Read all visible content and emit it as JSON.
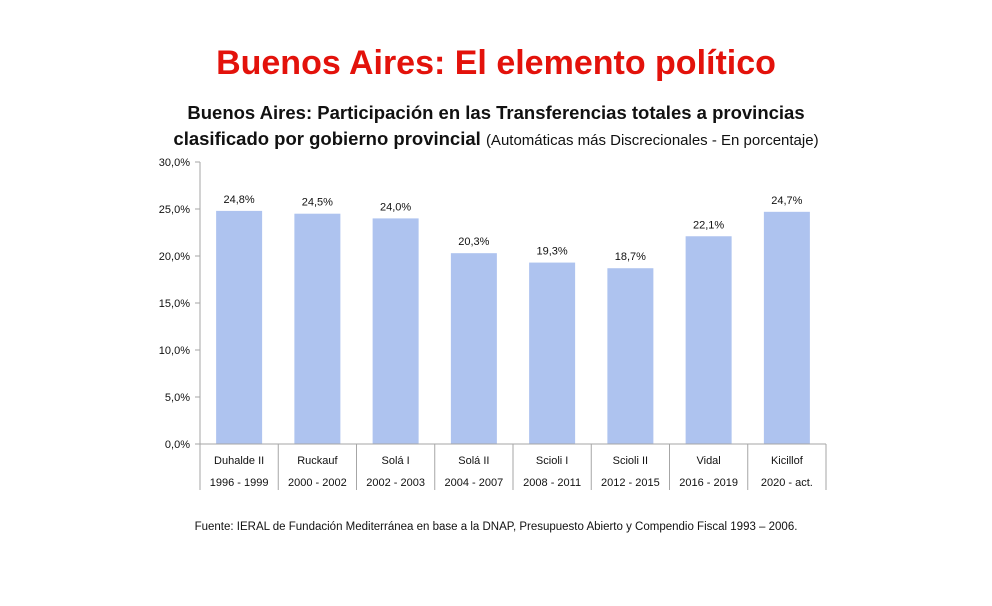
{
  "page_title": "Buenos Aires: El elemento político",
  "chart_title": "Buenos Aires: Participación en las Transferencias totales a provincias clasificado por gobierno provincial",
  "chart_title_note": "(Automáticas más Discrecionales - En porcentaje)",
  "source": "Fuente: IERAL de Fundación Mediterránea en base a la DNAP, Presupuesto Abierto y Compendio Fiscal 1993 – 2006.",
  "colors": {
    "title": "#e3120b",
    "bar": "#aec3ef",
    "axis": "#a6a6a6"
  },
  "chart_data": {
    "type": "bar",
    "categories": [
      "Duhalde II",
      "Ruckauf",
      "Solá I",
      "Solá II",
      "Scioli I",
      "Scioli II",
      "Vidal",
      "Kicillof"
    ],
    "periods": [
      "1996 - 1999",
      "2000 - 2002",
      "2002 - 2003",
      "2004 - 2007",
      "2008 - 2011",
      "2012 - 2015",
      "2016 - 2019",
      "2020 - act."
    ],
    "values": [
      24.8,
      24.5,
      24.0,
      20.3,
      19.3,
      18.7,
      22.1,
      24.7
    ],
    "data_labels": [
      "24,8%",
      "24,5%",
      "24,0%",
      "20,3%",
      "19,3%",
      "18,7%",
      "22,1%",
      "24,7%"
    ],
    "y_ticks": [
      0,
      5,
      10,
      15,
      20,
      25,
      30
    ],
    "y_tick_labels": [
      "0,0%",
      "5,0%",
      "10,0%",
      "15,0%",
      "20,0%",
      "25,0%",
      "30,0%"
    ],
    "ylim": [
      0,
      30
    ],
    "grid": false,
    "legend": "none"
  }
}
